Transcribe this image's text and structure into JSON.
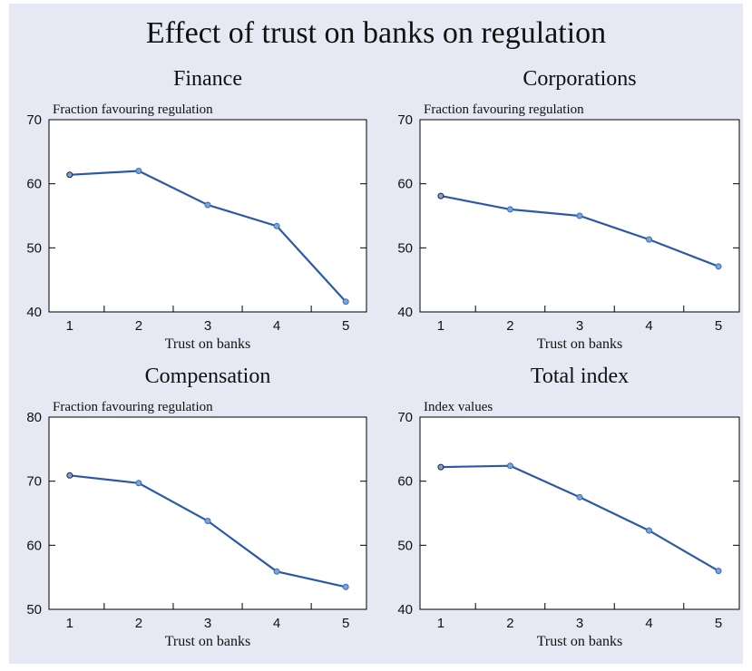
{
  "title": "Effect of trust on banks on regulation",
  "chart_data": [
    {
      "type": "line",
      "title": "Finance",
      "ylabel": "Fraction favouring regulation",
      "xlabel": "Trust on banks",
      "x": [
        1,
        2,
        3,
        4,
        5
      ],
      "values": [
        61.4,
        62.0,
        56.7,
        53.4,
        41.6
      ],
      "xticks": [
        1,
        2,
        3,
        4,
        5
      ],
      "yticks": [
        40,
        50,
        60,
        70
      ],
      "ylim": [
        40,
        70
      ],
      "color": "#2a5aa5"
    },
    {
      "type": "line",
      "title": "Corporations",
      "ylabel": "Fraction favouring regulation",
      "xlabel": "Trust on banks",
      "x": [
        1,
        2,
        3,
        4,
        5
      ],
      "values": [
        58.1,
        56.0,
        55.0,
        51.3,
        47.1
      ],
      "xticks": [
        1,
        2,
        3,
        4,
        5
      ],
      "yticks": [
        40,
        50,
        60,
        70
      ],
      "ylim": [
        40,
        70
      ],
      "color": "#2a5aa5"
    },
    {
      "type": "line",
      "title": "Compensation",
      "ylabel": "Fraction favouring regulation",
      "xlabel": "Trust on banks",
      "x": [
        1,
        2,
        3,
        4,
        5
      ],
      "values": [
        70.9,
        69.7,
        63.8,
        55.9,
        53.5
      ],
      "xticks": [
        1,
        2,
        3,
        4,
        5
      ],
      "yticks": [
        50,
        60,
        70,
        80
      ],
      "ylim": [
        50,
        80
      ],
      "color": "#2a5aa5"
    },
    {
      "type": "line",
      "title": "Total index",
      "ylabel": "Index values",
      "xlabel": "Trust on banks",
      "x": [
        1,
        2,
        3,
        4,
        5
      ],
      "values": [
        62.2,
        62.4,
        57.5,
        52.3,
        46.0
      ],
      "xticks": [
        1,
        2,
        3,
        4,
        5
      ],
      "yticks": [
        40,
        50,
        60,
        70
      ],
      "ylim": [
        40,
        70
      ],
      "color": "#2a5aa5"
    }
  ]
}
